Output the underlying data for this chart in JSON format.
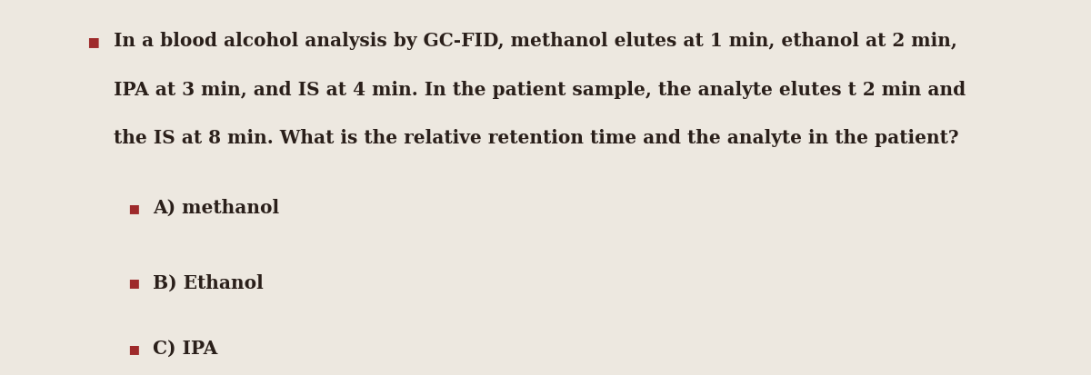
{
  "background_color": "#ede8e0",
  "bullet_color": "#9e2a2b",
  "text_color": "#2a1f1a",
  "line1": "In a blood alcohol analysis by GC-FID, methanol elutes at 1 min, ethanol at 2 min,",
  "line2": "IPA at 3 min, and IS at 4 min. In the patient sample, the analyte elutes t 2 min and",
  "line3": "the IS at 8 min. What is the relative retention time and the analyte in the patient?",
  "option_A": "A) methanol",
  "option_B": "B) Ethanol",
  "option_C": "C) IPA",
  "fontsize": 14.5,
  "option_fontsize": 14.5,
  "font_family": "DejaVu Serif",
  "font_weight": "bold"
}
